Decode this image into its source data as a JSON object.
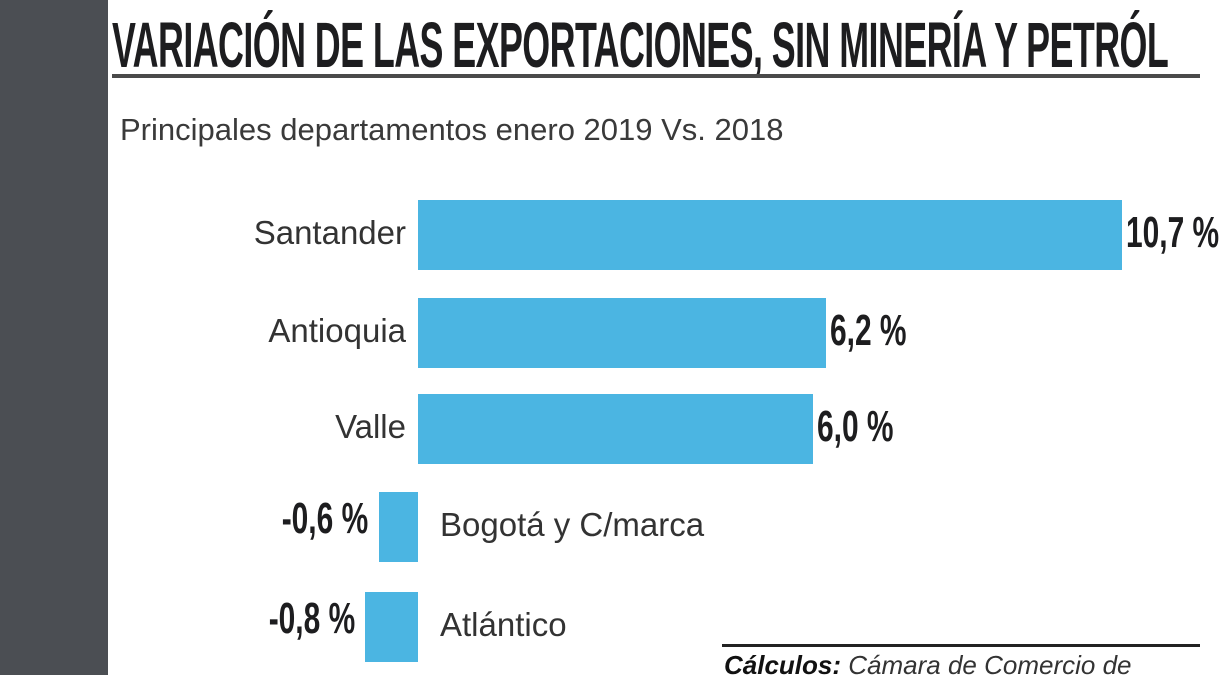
{
  "chart_data": {
    "type": "bar",
    "orientation": "horizontal",
    "title": "VARIACIÓN DE LAS EXPORTACIONES, SIN MINERÍA Y PETRÓL",
    "subtitle": "Principales departamentos enero 2019 Vs. 2018",
    "categories": [
      "Santander",
      "Antioquia",
      "Valle",
      "Bogotá y C/marca",
      "Atlántico"
    ],
    "values": [
      10.7,
      6.2,
      6.0,
      -0.6,
      -0.8
    ],
    "data_labels": [
      "10,7 %",
      "6,2 %",
      "6,0 %",
      "-0,6 %",
      "-0,8 %"
    ],
    "unit": "%",
    "grid": false,
    "bar_color": "#4bb5e2",
    "source_label": "Cálculos:",
    "source_text": "Cámara de Comercio de"
  }
}
